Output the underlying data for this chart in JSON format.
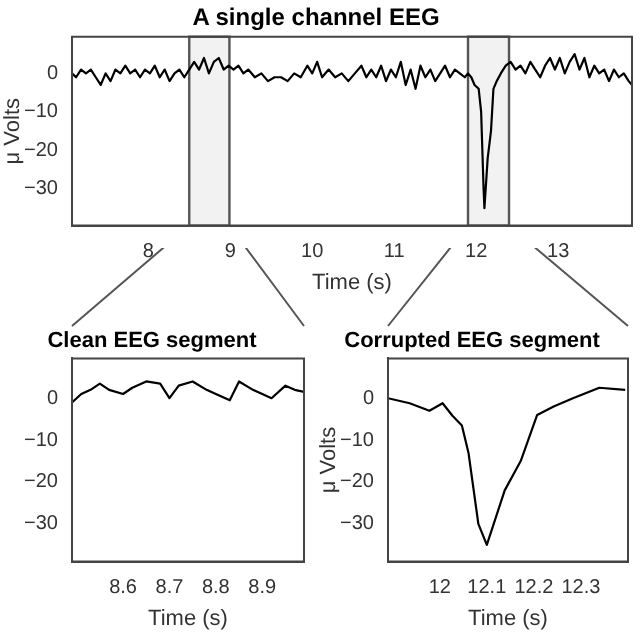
{
  "chart_data": [
    {
      "type": "line",
      "title": "A single channel EEG",
      "xlabel": "Time (s)",
      "ylabel": "μ Volts",
      "xlim": [
        7.07,
        13.9
      ],
      "ylim": [
        -39.5,
        9.5
      ],
      "xticks": [
        8,
        9,
        10,
        11,
        12,
        13
      ],
      "yticks": [
        -30,
        -20,
        -10,
        0
      ],
      "grid": false,
      "legend": false,
      "marker": "none",
      "line_style": "solid",
      "bands": [
        {
          "axis": "x",
          "from": 8.5,
          "to": 8.99,
          "color": "#555555"
        },
        {
          "axis": "x",
          "from": 11.9,
          "to": 12.4,
          "color": "#555555"
        }
      ],
      "series": [
        {
          "color": "#000000",
          "x": [
            7.07,
            7.12,
            7.18,
            7.24,
            7.3,
            7.36,
            7.42,
            7.48,
            7.54,
            7.6,
            7.66,
            7.72,
            7.78,
            7.84,
            7.9,
            7.96,
            8.02,
            8.08,
            8.14,
            8.2,
            8.26,
            8.32,
            8.38,
            8.44,
            8.5,
            8.56,
            8.62,
            8.68,
            8.74,
            8.8,
            8.86,
            8.92,
            8.98,
            9.04,
            9.1,
            9.16,
            9.22,
            9.3,
            9.38,
            9.46,
            9.54,
            9.62,
            9.7,
            9.78,
            9.86,
            9.94,
            10.0,
            10.06,
            10.12,
            10.2,
            10.28,
            10.36,
            10.44,
            10.52,
            10.6,
            10.66,
            10.72,
            10.78,
            10.84,
            10.9,
            10.96,
            11.02,
            11.08,
            11.14,
            11.2,
            11.26,
            11.32,
            11.38,
            11.44,
            11.5,
            11.56,
            11.62,
            11.68,
            11.74,
            11.8,
            11.86,
            11.9,
            11.94,
            11.98,
            12.03,
            12.06,
            12.09,
            12.1,
            12.14,
            12.18,
            12.21,
            12.25,
            12.3,
            12.36,
            12.42,
            12.48,
            12.54,
            12.6,
            12.66,
            12.72,
            12.78,
            12.84,
            12.9,
            12.96,
            13.02,
            13.08,
            13.14,
            13.2,
            13.26,
            13.32,
            13.38,
            13.44,
            13.5,
            13.56,
            13.62,
            13.68,
            13.74,
            13.8,
            13.86,
            13.9
          ],
          "values": [
            0,
            -1,
            1,
            0,
            1,
            -1,
            -3,
            0,
            -2,
            1,
            0,
            2,
            0,
            1,
            -1,
            1,
            0,
            2,
            -1,
            1,
            -2,
            0,
            1,
            -1,
            1,
            3,
            1,
            4,
            0,
            3,
            4,
            1,
            2,
            1,
            2,
            0,
            1,
            -1,
            0,
            -2,
            -1,
            -1,
            -2,
            0,
            -1,
            2,
            0,
            3,
            -1,
            1,
            -1,
            0,
            -2,
            0,
            2,
            -1,
            1,
            -1,
            2,
            -2,
            1,
            -1,
            3,
            -3,
            1,
            -4,
            2,
            -1,
            1,
            -2,
            0,
            2,
            -1,
            1,
            0,
            -1,
            0,
            -1,
            -3,
            -4,
            -10,
            -30,
            -35,
            -22,
            -15,
            -4,
            -2,
            0,
            2,
            3,
            1,
            2,
            0,
            3,
            1,
            -1,
            2,
            4,
            1,
            4,
            0,
            3,
            5,
            1,
            4,
            -1,
            2,
            0,
            1,
            -2,
            1,
            -1,
            0,
            -2,
            -3
          ]
        }
      ]
    },
    {
      "type": "line",
      "title": "Clean EEG segment",
      "xlabel": "Time (s)",
      "xlim": [
        8.49,
        8.99
      ],
      "ylim": [
        -39,
        9.5
      ],
      "xticks": [
        8.6,
        8.7,
        8.8,
        8.9
      ],
      "yticks": [
        -30,
        -20,
        -10,
        0
      ],
      "grid": false,
      "legend": false,
      "marker": "none",
      "line_style": "solid",
      "series": [
        {
          "color": "#000000",
          "x": [
            8.49,
            8.51,
            8.53,
            8.55,
            8.57,
            8.6,
            8.62,
            8.65,
            8.68,
            8.7,
            8.72,
            8.75,
            8.78,
            8.8,
            8.83,
            8.85,
            8.88,
            8.9,
            8.92,
            8.95,
            8.97,
            8.99
          ],
          "values": [
            -1,
            1,
            2,
            3.5,
            2,
            1,
            2.5,
            4,
            3.5,
            0,
            3,
            4,
            2,
            1,
            -0.5,
            4,
            2,
            1,
            0,
            3,
            2,
            1.5
          ]
        }
      ]
    },
    {
      "type": "line",
      "title": "Corrupted EEG segment",
      "xlabel": "Time (s)",
      "ylabel": "μ Volts",
      "xlim": [
        11.89,
        12.4
      ],
      "ylim": [
        -39,
        9.5
      ],
      "xticks": [
        12,
        12.1,
        12.2,
        12.3
      ],
      "yticks": [
        -30,
        -20,
        -10,
        0
      ],
      "grid": false,
      "legend": false,
      "marker": "none",
      "line_style": "solid",
      "series": [
        {
          "color": "#000000",
          "x": [
            11.89,
            11.936,
            11.978,
            12.006,
            12.027,
            12.047,
            12.061,
            12.082,
            12.1,
            12.138,
            12.172,
            12.207,
            12.242,
            12.283,
            12.339,
            12.394
          ],
          "values": [
            0,
            -1.2,
            -3,
            -1.2,
            -4.2,
            -6.5,
            -13,
            -30,
            -35,
            -22,
            -15,
            -4,
            -2,
            0,
            2.5,
            2
          ]
        }
      ]
    }
  ]
}
